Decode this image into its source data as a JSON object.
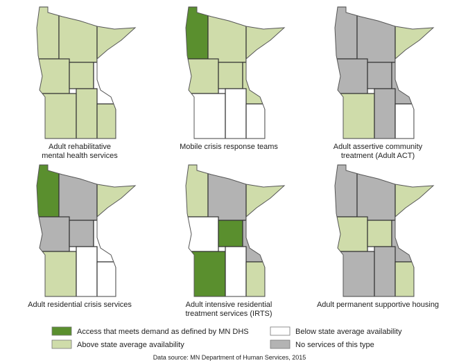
{
  "maps": [
    {
      "title": "Adult rehabilitative mental health services",
      "regions": [
        1,
        1,
        1,
        1,
        1,
        2,
        1,
        1,
        1
      ]
    },
    {
      "title": "Mobile crisis response teams",
      "regions": [
        0,
        1,
        1,
        1,
        1,
        1,
        2,
        2,
        2
      ]
    },
    {
      "title": "Adult assertive community treatment (Adult ACT)",
      "regions": [
        3,
        3,
        1,
        3,
        3,
        3,
        1,
        3,
        2
      ]
    },
    {
      "title": "Adult residential crisis services",
      "regions": [
        0,
        3,
        1,
        3,
        3,
        2,
        1,
        2,
        2
      ]
    },
    {
      "title": "Adult intensive residential treatment services (IRTS)",
      "regions": [
        1,
        3,
        1,
        2,
        0,
        3,
        0,
        2,
        1
      ]
    },
    {
      "title": "Adult permanent supportive housing",
      "regions": [
        3,
        3,
        1,
        1,
        1,
        3,
        3,
        3,
        1
      ]
    }
  ],
  "legend": [
    {
      "label": "Access that meets demand as defined by MN DHS",
      "color": "#5a8f2e"
    },
    {
      "label": "Above state average availability",
      "color": "#cfdcaa"
    },
    {
      "label": "Below state average availability",
      "color": "#ffffff"
    },
    {
      "label": "No services of this type",
      "color": "#b3b3b3"
    }
  ],
  "source": "Data source: MN Department of Human Services, 2015"
}
